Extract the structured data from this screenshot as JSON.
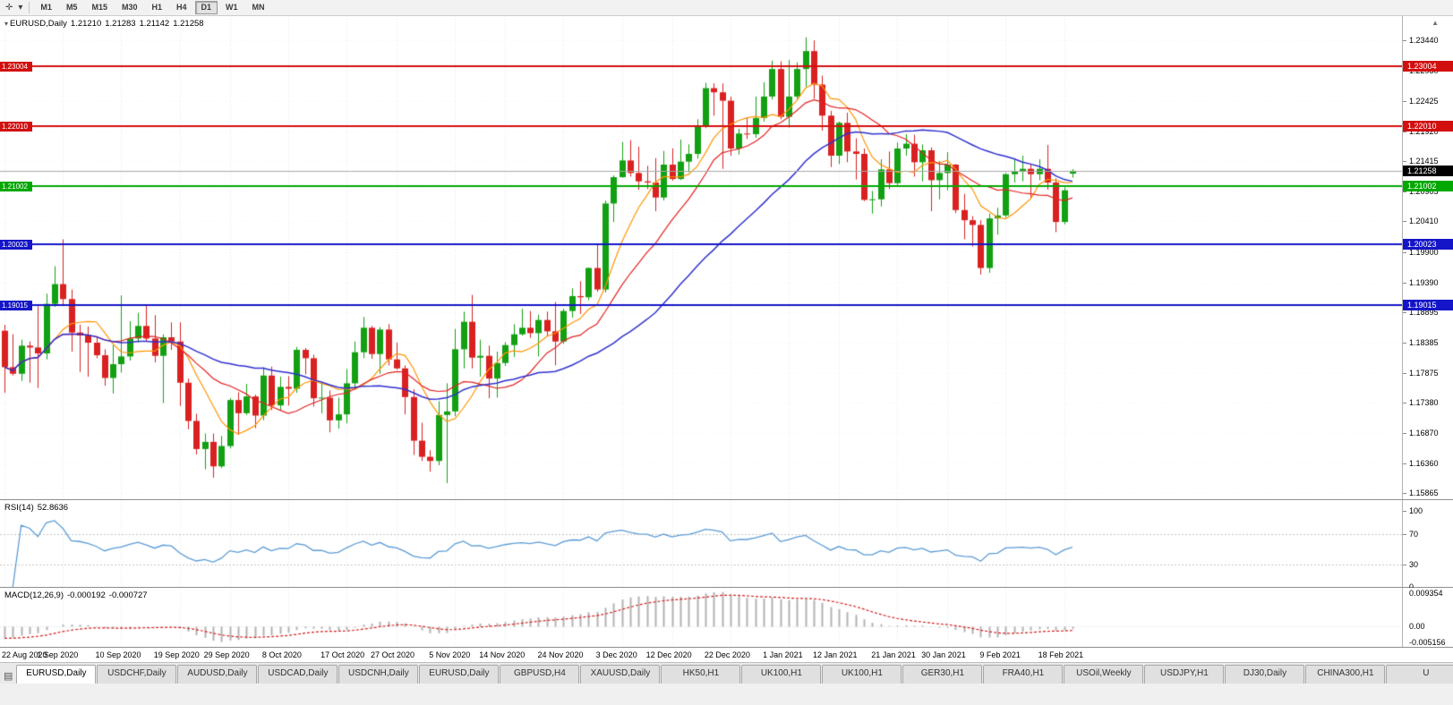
{
  "toolbar": {
    "timeframes": [
      "M1",
      "M5",
      "M15",
      "M30",
      "H1",
      "H4",
      "D1",
      "W1",
      "MN"
    ],
    "active": "D1"
  },
  "icons": {
    "cursor": "✛",
    "dropdown": "▾",
    "collapse": "▾",
    "scroll_up": "▲",
    "chart_windows": "▤"
  },
  "main": {
    "symbol": "EURUSD,Daily",
    "ohlc": {
      "open": "1.21210",
      "high": "1.21283",
      "low": "1.21142",
      "close": "1.21258"
    },
    "price_ticks": [
      "1.23440",
      "1.22930",
      "1.22425",
      "1.21920",
      "1.21415",
      "1.20905",
      "1.20410",
      "1.19900",
      "1.19390",
      "1.18895",
      "1.18385",
      "1.17875",
      "1.17380",
      "1.16870",
      "1.16360",
      "1.15865"
    ],
    "hlines": [
      {
        "label": "1.23004",
        "value": 1.23004,
        "color": "#d20f0f"
      },
      {
        "label": "1.22010",
        "value": 1.2201,
        "color": "#d20f0f"
      },
      {
        "label": "1.21002",
        "value": 1.21002,
        "color": "#00a800"
      },
      {
        "label": "1.20023",
        "value": 1.20023,
        "color": "#1414c8"
      },
      {
        "label": "1.19015",
        "value": 1.19015,
        "color": "#1414c8"
      }
    ],
    "bid": {
      "label": "1.21258",
      "value": 1.21258,
      "color": "#000000"
    },
    "date_ticks": [
      {
        "index": 0,
        "label": "22 Aug 2020"
      },
      {
        "index": 7,
        "label": "1 Sep 2020"
      },
      {
        "index": 14,
        "label": "10 Sep 2020"
      },
      {
        "index": 21,
        "label": "19 Sep 2020"
      },
      {
        "index": 27,
        "label": "29 Sep 2020"
      },
      {
        "index": 34,
        "label": "8 Oct 2020"
      },
      {
        "index": 41,
        "label": "17 Oct 2020"
      },
      {
        "index": 47,
        "label": "27 Oct 2020"
      },
      {
        "index": 54,
        "label": "5 Nov 2020"
      },
      {
        "index": 60,
        "label": "14 Nov 2020"
      },
      {
        "index": 67,
        "label": "24 Nov 2020"
      },
      {
        "index": 74,
        "label": "3 Dec 2020"
      },
      {
        "index": 80,
        "label": "12 Dec 2020"
      },
      {
        "index": 87,
        "label": "22 Dec 2020"
      },
      {
        "index": 94,
        "label": "1 Jan 2021"
      },
      {
        "index": 100,
        "label": "12 Jan 2021"
      },
      {
        "index": 107,
        "label": "21 Jan 2021"
      },
      {
        "index": 113,
        "label": "30 Jan 2021"
      },
      {
        "index": 120,
        "label": "9 Feb 2021"
      },
      {
        "index": 127,
        "label": "18 Feb 2021"
      }
    ],
    "candles": [
      [
        1.1858,
        1.1868,
        1.1754,
        1.1797
      ],
      [
        1.1797,
        1.1852,
        1.1783,
        1.1786
      ],
      [
        1.1786,
        1.1843,
        1.1774,
        1.1833
      ],
      [
        1.1833,
        1.184,
        1.1771,
        1.183
      ],
      [
        1.183,
        1.1899,
        1.1762,
        1.182
      ],
      [
        1.182,
        1.192,
        1.181,
        1.1903
      ],
      [
        1.1903,
        1.1966,
        1.1898,
        1.1936
      ],
      [
        1.1936,
        1.2011,
        1.1901,
        1.1911
      ],
      [
        1.1911,
        1.1927,
        1.1823,
        1.1855
      ],
      [
        1.1855,
        1.1868,
        1.1789,
        1.185
      ],
      [
        1.185,
        1.1865,
        1.1781,
        1.1838
      ],
      [
        1.1838,
        1.1849,
        1.1812,
        1.1817
      ],
      [
        1.1817,
        1.1827,
        1.1766,
        1.1779
      ],
      [
        1.1779,
        1.1834,
        1.1753,
        1.1802
      ],
      [
        1.1802,
        1.1917,
        1.1788,
        1.1815
      ],
      [
        1.1815,
        1.1874,
        1.1808,
        1.1845
      ],
      [
        1.1845,
        1.1888,
        1.1838,
        1.1866
      ],
      [
        1.1866,
        1.19,
        1.184,
        1.1845
      ],
      [
        1.1845,
        1.1884,
        1.1805,
        1.1816
      ],
      [
        1.1816,
        1.1852,
        1.1737,
        1.1847
      ],
      [
        1.1847,
        1.1872,
        1.1826,
        1.184
      ],
      [
        1.184,
        1.1872,
        1.1732,
        1.1771
      ],
      [
        1.1771,
        1.1778,
        1.1693,
        1.1707
      ],
      [
        1.1707,
        1.1719,
        1.1651,
        1.166
      ],
      [
        1.166,
        1.1686,
        1.1626,
        1.1672
      ],
      [
        1.1672,
        1.1686,
        1.1612,
        1.1631
      ],
      [
        1.1631,
        1.1682,
        1.1628,
        1.1665
      ],
      [
        1.1665,
        1.1745,
        1.1661,
        1.1742
      ],
      [
        1.1742,
        1.1755,
        1.1684,
        1.172
      ],
      [
        1.172,
        1.1769,
        1.1717,
        1.1748
      ],
      [
        1.1748,
        1.1751,
        1.1695,
        1.1716
      ],
      [
        1.1716,
        1.1797,
        1.1708,
        1.1783
      ],
      [
        1.1783,
        1.1798,
        1.1725,
        1.1733
      ],
      [
        1.1733,
        1.1781,
        1.1725,
        1.1764
      ],
      [
        1.1764,
        1.1782,
        1.1733,
        1.1761
      ],
      [
        1.1761,
        1.1831,
        1.1754,
        1.1826
      ],
      [
        1.1826,
        1.1829,
        1.1785,
        1.1812
      ],
      [
        1.1812,
        1.1818,
        1.1731,
        1.1745
      ],
      [
        1.1745,
        1.1771,
        1.172,
        1.1746
      ],
      [
        1.1746,
        1.1758,
        1.1688,
        1.1708
      ],
      [
        1.1708,
        1.1746,
        1.1694,
        1.1718
      ],
      [
        1.1718,
        1.1794,
        1.1703,
        1.177
      ],
      [
        1.177,
        1.184,
        1.1761,
        1.1822
      ],
      [
        1.1822,
        1.1881,
        1.1812,
        1.1863
      ],
      [
        1.1863,
        1.1866,
        1.1811,
        1.1819
      ],
      [
        1.1819,
        1.1864,
        1.1786,
        1.186
      ],
      [
        1.186,
        1.1869,
        1.18,
        1.181
      ],
      [
        1.181,
        1.1838,
        1.1793,
        1.1795
      ],
      [
        1.1795,
        1.18,
        1.1718,
        1.1747
      ],
      [
        1.1747,
        1.176,
        1.165,
        1.1674
      ],
      [
        1.1674,
        1.1704,
        1.164,
        1.1647
      ],
      [
        1.1647,
        1.1658,
        1.1622,
        1.164
      ],
      [
        1.164,
        1.174,
        1.1633,
        1.1717
      ],
      [
        1.1717,
        1.177,
        1.1603,
        1.1723
      ],
      [
        1.1723,
        1.1861,
        1.1715,
        1.1827
      ],
      [
        1.1827,
        1.189,
        1.1795,
        1.1873
      ],
      [
        1.1873,
        1.1918,
        1.1795,
        1.1813
      ],
      [
        1.1813,
        1.1843,
        1.1781,
        1.1816
      ],
      [
        1.1816,
        1.1833,
        1.1745,
        1.1778
      ],
      [
        1.1778,
        1.1823,
        1.1746,
        1.1804
      ],
      [
        1.1804,
        1.1839,
        1.1799,
        1.1834
      ],
      [
        1.1834,
        1.1869,
        1.1814,
        1.1852
      ],
      [
        1.1852,
        1.1895,
        1.185,
        1.1863
      ],
      [
        1.1863,
        1.1891,
        1.1846,
        1.1854
      ],
      [
        1.1854,
        1.1885,
        1.1815,
        1.1876
      ],
      [
        1.1876,
        1.189,
        1.1849,
        1.1857
      ],
      [
        1.1857,
        1.1906,
        1.18,
        1.184
      ],
      [
        1.184,
        1.1895,
        1.1836,
        1.1891
      ],
      [
        1.1891,
        1.1929,
        1.188,
        1.1916
      ],
      [
        1.1916,
        1.1941,
        1.1886,
        1.1914
      ],
      [
        1.1914,
        1.1964,
        1.1909,
        1.1963
      ],
      [
        1.1963,
        1.2003,
        1.1923,
        1.1927
      ],
      [
        1.1927,
        1.2076,
        1.1922,
        1.2071
      ],
      [
        1.2071,
        1.2118,
        1.204,
        1.2115
      ],
      [
        1.2115,
        1.2174,
        1.2114,
        1.2143
      ],
      [
        1.2143,
        1.2177,
        1.2116,
        1.2122
      ],
      [
        1.2122,
        1.2166,
        1.2094,
        1.2108
      ],
      [
        1.2108,
        1.2134,
        1.2095,
        1.2106
      ],
      [
        1.2106,
        1.2147,
        1.2058,
        1.2081
      ],
      [
        1.2081,
        1.2159,
        1.2076,
        1.2136
      ],
      [
        1.2136,
        1.2163,
        1.2109,
        1.2112
      ],
      [
        1.2112,
        1.2178,
        1.211,
        1.2141
      ],
      [
        1.2141,
        1.217,
        1.2123,
        1.2154
      ],
      [
        1.2154,
        1.2212,
        1.2146,
        1.2199
      ],
      [
        1.2199,
        1.2273,
        1.2197,
        1.2264
      ],
      [
        1.2264,
        1.2272,
        1.2218,
        1.2257
      ],
      [
        1.2257,
        1.2272,
        1.2129,
        1.2243
      ],
      [
        1.2243,
        1.225,
        1.2151,
        1.2163
      ],
      [
        1.2163,
        1.2196,
        1.2153,
        1.2188
      ],
      [
        1.2188,
        1.2214,
        1.2179,
        1.2187
      ],
      [
        1.2187,
        1.225,
        1.2181,
        1.2214
      ],
      [
        1.2214,
        1.2274,
        1.2208,
        1.225
      ],
      [
        1.225,
        1.231,
        1.2245,
        1.2296
      ],
      [
        1.2296,
        1.2309,
        1.2212,
        1.2216
      ],
      [
        1.2216,
        1.2311,
        1.2198,
        1.225
      ],
      [
        1.225,
        1.2307,
        1.2246,
        1.2296
      ],
      [
        1.2296,
        1.2349,
        1.2266,
        1.2326
      ],
      [
        1.2326,
        1.2344,
        1.2246,
        1.227
      ],
      [
        1.227,
        1.2285,
        1.2193,
        1.2218
      ],
      [
        1.2218,
        1.2226,
        1.2132,
        1.2151
      ],
      [
        1.2151,
        1.2208,
        1.2137,
        1.2206
      ],
      [
        1.2206,
        1.2223,
        1.214,
        1.2158
      ],
      [
        1.2158,
        1.218,
        1.2111,
        1.2154
      ],
      [
        1.2154,
        1.2163,
        1.2075,
        1.2077
      ],
      [
        1.2077,
        1.2092,
        1.2054,
        1.2078
      ],
      [
        1.2078,
        1.2145,
        1.2066,
        1.2128
      ],
      [
        1.2128,
        1.2158,
        1.2095,
        1.2105
      ],
      [
        1.2105,
        1.2173,
        1.2102,
        1.2163
      ],
      [
        1.2163,
        1.2187,
        1.2151,
        1.2171
      ],
      [
        1.2171,
        1.2186,
        1.2116,
        1.214
      ],
      [
        1.214,
        1.217,
        1.2108,
        1.216
      ],
      [
        1.216,
        1.2165,
        1.2058,
        1.211
      ],
      [
        1.211,
        1.2142,
        1.2078,
        1.2122
      ],
      [
        1.2122,
        1.2157,
        1.2093,
        1.2136
      ],
      [
        1.2136,
        1.2137,
        1.2055,
        1.206
      ],
      [
        1.206,
        1.2087,
        1.2011,
        1.2043
      ],
      [
        1.2043,
        1.205,
        1.1999,
        1.2035
      ],
      [
        1.2035,
        1.2043,
        1.1952,
        1.1963
      ],
      [
        1.1963,
        1.2054,
        1.1955,
        1.2046
      ],
      [
        1.2046,
        1.2064,
        1.2019,
        1.2051
      ],
      [
        1.2051,
        1.2122,
        1.2048,
        1.212
      ],
      [
        1.212,
        1.2145,
        1.2106,
        1.2124
      ],
      [
        1.2124,
        1.2151,
        1.2108,
        1.2129
      ],
      [
        1.2129,
        1.2137,
        1.208,
        1.212
      ],
      [
        1.212,
        1.2145,
        1.211,
        1.2129
      ],
      [
        1.2129,
        1.2169,
        1.2094,
        1.2106
      ],
      [
        1.2106,
        1.2113,
        1.2023,
        1.204
      ],
      [
        1.204,
        1.2098,
        1.2036,
        1.2093
      ],
      [
        1.2121,
        1.21283,
        1.21142,
        1.21258
      ]
    ]
  },
  "rsi": {
    "name": "RSI(14)",
    "value": "52.8636",
    "period": 14,
    "scale": [
      "100",
      "70",
      "30",
      "0"
    ],
    "levels": [
      70,
      30
    ]
  },
  "macd": {
    "name": "MACD(12,26,9)",
    "value1": "-0.000192",
    "value2": "-0.000727",
    "fast": 12,
    "slow": 26,
    "signal": 9,
    "scale": [
      "0.009354",
      "0.00",
      "-0.005156"
    ],
    "scale_values": [
      0.009354,
      0,
      -0.005156
    ]
  },
  "tabs": {
    "items": [
      {
        "label": "EURUSD,Daily",
        "active": true
      },
      {
        "label": "USDCHF,Daily",
        "active": false
      },
      {
        "label": "AUDUSD,Daily",
        "active": false
      },
      {
        "label": "USDCAD,Daily",
        "active": false
      },
      {
        "label": "USDCNH,Daily",
        "active": false
      },
      {
        "label": "EURUSD,Daily",
        "active": false
      },
      {
        "label": "GBPUSD,H4",
        "active": false
      },
      {
        "label": "XAUUSD,Daily",
        "active": false
      },
      {
        "label": "HK50,H1",
        "active": false
      },
      {
        "label": "UK100,H1",
        "active": false
      },
      {
        "label": "UK100,H1",
        "active": false
      },
      {
        "label": "GER30,H1",
        "active": false
      },
      {
        "label": "FRA40,H1",
        "active": false
      },
      {
        "label": "USOil,Weekly",
        "active": false
      },
      {
        "label": "USDJPY,H1",
        "active": false
      },
      {
        "label": "DJ30,Daily",
        "active": false
      },
      {
        "label": "CHINA300,H1",
        "active": false
      },
      {
        "label": "U",
        "active": false
      }
    ]
  },
  "colors": {
    "up": "#12a012",
    "down": "#d92121",
    "ma_fast": "#ff9400",
    "ma_mid": "#e32222",
    "ma_slow": "#3030cf",
    "rsi_line": "#5b9bd5",
    "macd_hist": "#b3b3b3",
    "macd_signal": "#d21f1f",
    "bid_line": "#a8a8a8"
  }
}
